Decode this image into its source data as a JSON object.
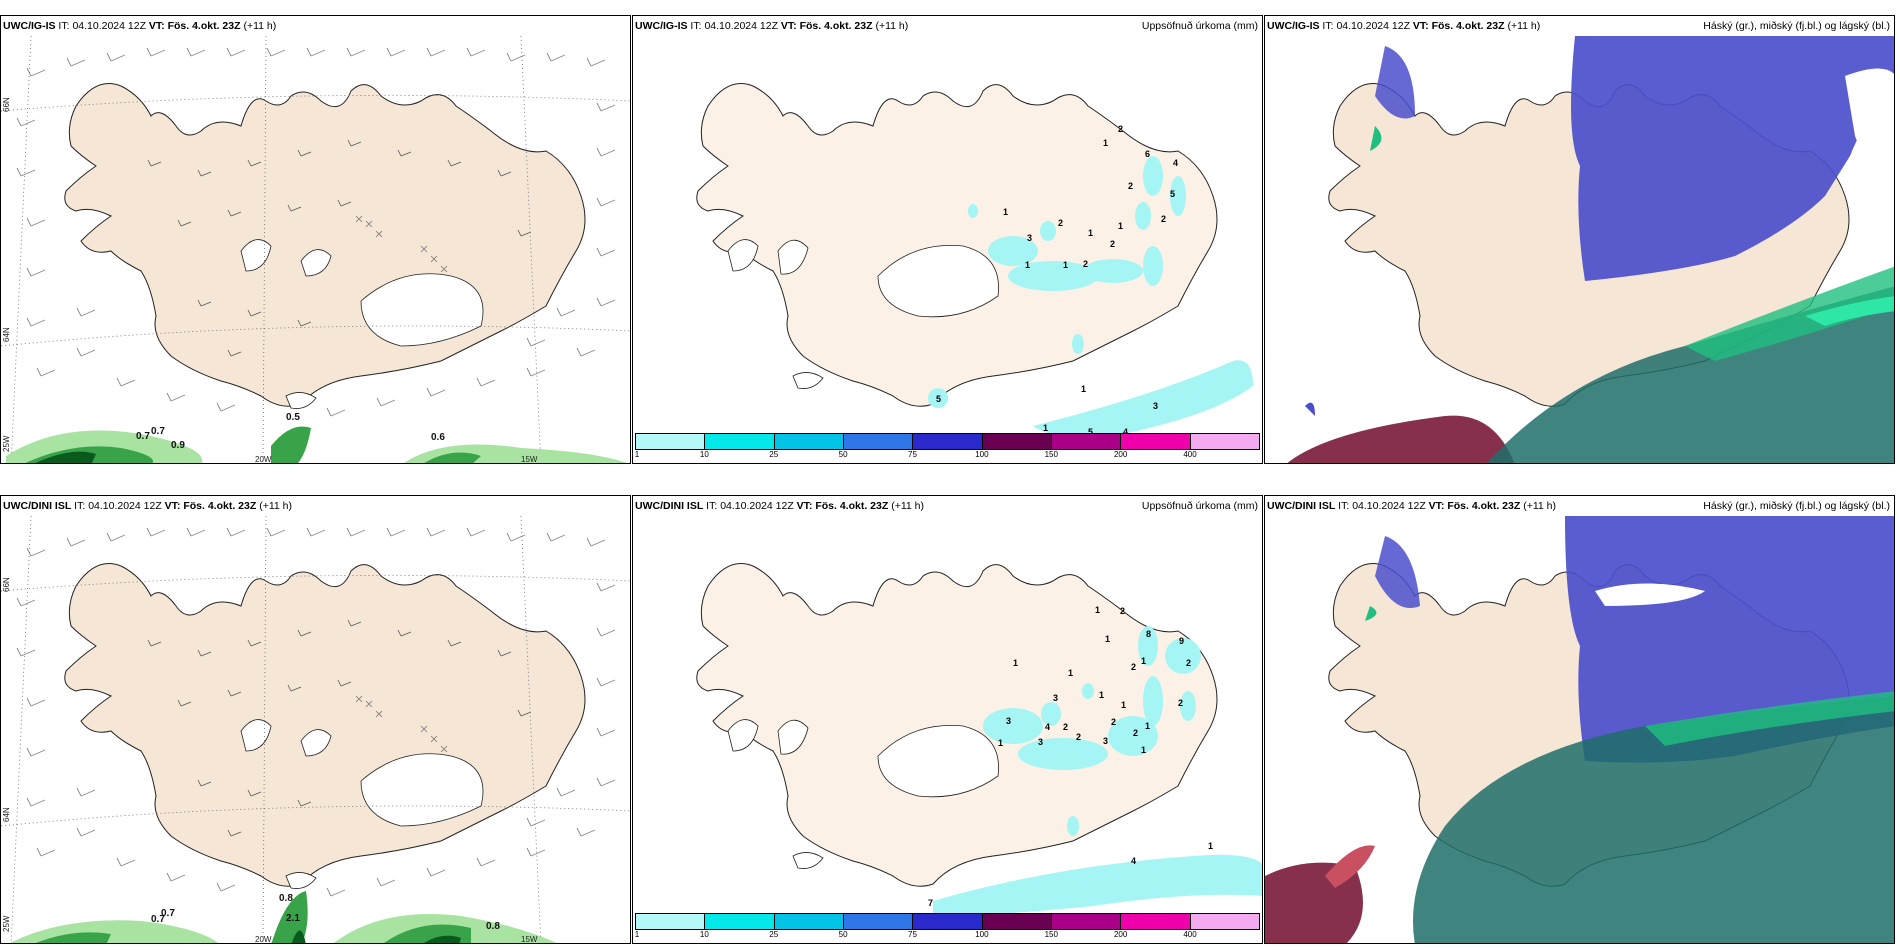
{
  "rows": [
    {
      "model": "UWC/IG-IS",
      "it_label": "IT:",
      "it_value": "04.10.2024 12Z",
      "vt_label": "VT:",
      "vt_value": "Fös. 4.okt. 23Z",
      "lead": "(+11 h)",
      "precip_title": "Uppsöfnuð úrkoma (mm)",
      "cloud_title": "Háský (gr.), miðský (fj.bl.) og lágský (bl.)",
      "wind_green_labels": [
        "0.7",
        "0.7",
        "0.9",
        "0.5",
        "0.6"
      ],
      "precip_labels": [
        "2",
        "1",
        "6",
        "4",
        "2",
        "5",
        "2",
        "1",
        "1",
        "2",
        "2",
        "1",
        "3",
        "1",
        "1",
        "2",
        "1",
        "5",
        "1",
        "3",
        "5",
        "4"
      ]
    },
    {
      "model": "UWC/DINI ISL",
      "it_label": "IT:",
      "it_value": "04.10.2024 12Z",
      "vt_label": "VT:",
      "vt_value": "Fös. 4.okt. 23Z",
      "lead": "(+11 h)",
      "precip_title": "Uppsöfnuð úrkoma (mm)",
      "cloud_title": "Háský (gr.), miðský (fj.bl.) og lágský (bl.)",
      "wind_green_labels": [
        "0.7",
        "0.7",
        "0.8",
        "2.1",
        "0.8"
      ],
      "precip_labels": [
        "1",
        "2",
        "1",
        "8",
        "9",
        "1",
        "2",
        "2",
        "1",
        "1",
        "3",
        "1",
        "1",
        "2",
        "3",
        "4",
        "2",
        "2",
        "2",
        "2",
        "3",
        "1",
        "1",
        "3",
        "1",
        "1",
        "4",
        "7"
      ]
    }
  ],
  "axis_labels": {
    "lat66": "66N",
    "lat64": "64N",
    "lon25": "25W",
    "lon20": "20W",
    "lon15": "15W"
  },
  "colorbar": {
    "ticks": [
      "1",
      "10",
      "25",
      "50",
      "75",
      "100",
      "150",
      "200",
      "400"
    ],
    "colors": [
      "#b4f8f8",
      "#00e8e8",
      "#00c4e6",
      "#2d78e6",
      "#2a2acc",
      "#6a0052",
      "#aa0088",
      "#ee00aa",
      "#f4aaf0"
    ]
  },
  "colors": {
    "land": "#f5e6d6",
    "land_precip": "#fcf1e6",
    "green_dark": "#0a5a1e",
    "green_mid": "#39a34a",
    "green_light": "#a8e3a2",
    "cyan_precip": "#a6f5f5",
    "high_cloud": "#1fbf80",
    "mid_cloud": "#4b4fcc",
    "low_cloud": "#7a1a3a"
  }
}
